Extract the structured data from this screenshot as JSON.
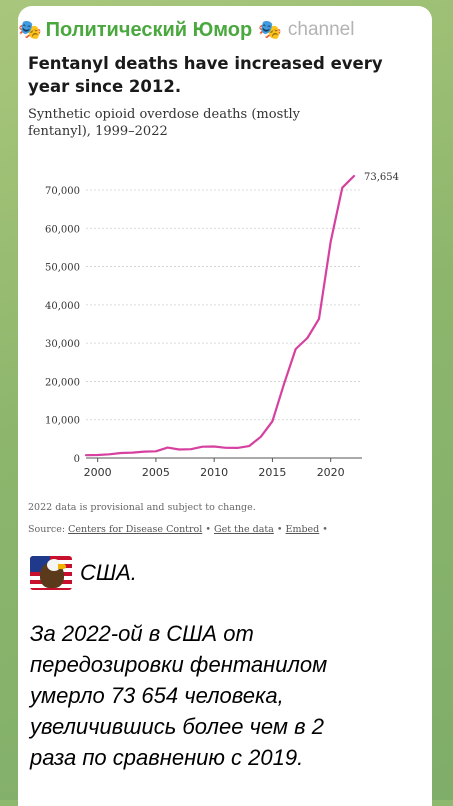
{
  "post": {
    "channel_icon": "theater-masks-icon",
    "channel_name": "Политический Юмор",
    "channel_tag": "channel"
  },
  "chart_data": {
    "type": "line",
    "title": "Fentanyl deaths have increased every year since 2012.",
    "subtitle": "Synthetic opioid overdose deaths (mostly fentanyl), 1999–2022",
    "x": [
      1999,
      2000,
      2001,
      2002,
      2003,
      2004,
      2005,
      2006,
      2007,
      2008,
      2009,
      2010,
      2011,
      2012,
      2013,
      2014,
      2015,
      2016,
      2017,
      2018,
      2019,
      2020,
      2021,
      2022
    ],
    "values": [
      730,
      782,
      957,
      1295,
      1400,
      1664,
      1742,
      2707,
      2213,
      2306,
      2946,
      3007,
      2666,
      2628,
      3105,
      5544,
      9580,
      19413,
      28466,
      31335,
      36359,
      56516,
      70601,
      73654
    ],
    "end_label": "73,654",
    "xticks": [
      "2000",
      "2005",
      "2010",
      "2015",
      "2020"
    ],
    "yticks": [
      "0",
      "10,000",
      "20,000",
      "30,000",
      "40,000",
      "50,000",
      "60,000",
      "70,000"
    ],
    "xlim": [
      1999,
      2022
    ],
    "ylim": [
      0,
      70000
    ],
    "grid": true,
    "color": "#d6409f",
    "note": "2022 data is provisional and subject to change.",
    "source_prefix": "Source:",
    "source_link": "Centers for Disease Control",
    "data_link": "Get the data",
    "embed_link": "Embed",
    "separator": "•"
  },
  "message": {
    "flag_icon": "us-flag-eagle-icon",
    "flag_caption": "США.",
    "lines": [
      "За 2022-ой в США от",
      "передозировки фентанилом",
      "умерло 73 654 человека,",
      "увеличившись более чем в 2",
      "раза по сравнению с 2019."
    ]
  }
}
